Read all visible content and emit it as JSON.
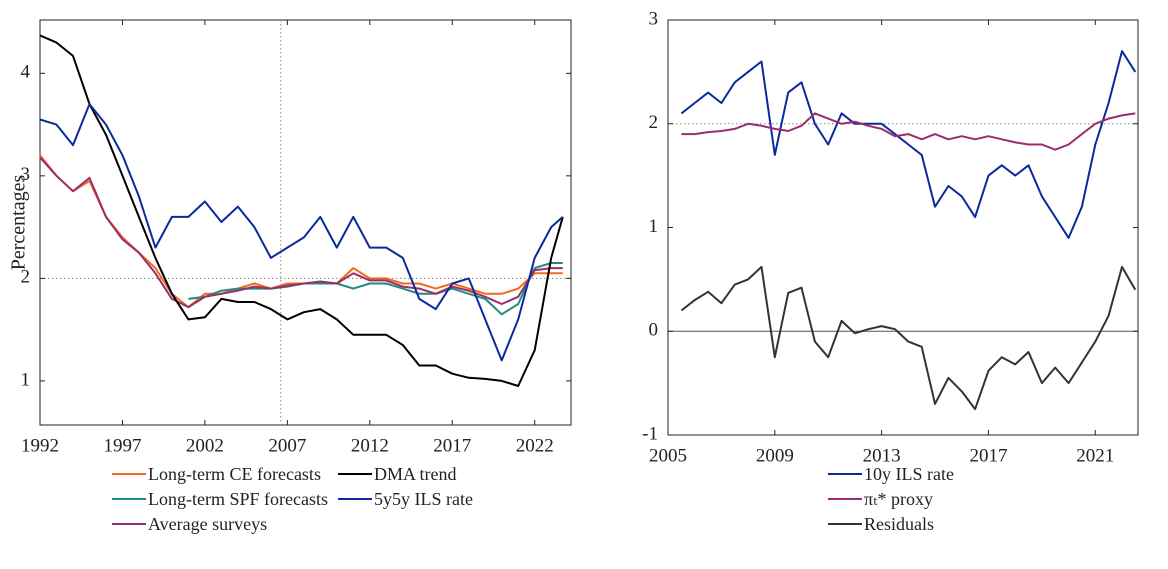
{
  "chart_data": [
    {
      "type": "line",
      "ylabel": "Percentages",
      "x": [
        1992,
        1993,
        1994,
        1995,
        1996,
        1997,
        1998,
        1999,
        2000,
        2001,
        2002,
        2003,
        2004,
        2005,
        2006,
        2007,
        2008,
        2009,
        2010,
        2011,
        2012,
        2013,
        2014,
        2015,
        2016,
        2017,
        2018,
        2019,
        2020,
        2021,
        2022,
        2023,
        2023.7
      ],
      "xlim": [
        1992,
        2024.2
      ],
      "xticks": [
        1992,
        1997,
        2002,
        2007,
        2012,
        2017,
        2022
      ],
      "ylim": [
        0.57,
        4.52
      ],
      "yticks": [
        1,
        2,
        3,
        4
      ],
      "reference_lines": [
        {
          "axis": "y",
          "value": 2,
          "style": "dotted"
        },
        {
          "axis": "x",
          "value": 2006.6,
          "style": "dotted"
        }
      ],
      "series": [
        {
          "name": "Long-term CE forecasts",
          "color": "#f26b1d",
          "values": [
            3.2,
            3.0,
            2.85,
            2.95,
            2.6,
            2.4,
            2.25,
            2.1,
            1.85,
            1.72,
            1.85,
            1.85,
            1.9,
            1.95,
            1.9,
            1.95,
            1.95,
            1.95,
            1.95,
            2.1,
            2.0,
            2.0,
            1.95,
            1.95,
            1.9,
            1.95,
            1.9,
            1.85,
            1.85,
            1.9,
            2.05,
            2.05,
            2.05
          ]
        },
        {
          "name": "Long-term SPF forecasts",
          "color": "#1f8a80",
          "values": [
            null,
            null,
            null,
            null,
            null,
            null,
            null,
            null,
            null,
            1.8,
            1.82,
            1.88,
            1.9,
            1.9,
            1.9,
            1.92,
            1.95,
            1.95,
            1.95,
            1.9,
            1.95,
            1.95,
            1.9,
            1.85,
            1.85,
            1.9,
            1.85,
            1.8,
            1.65,
            1.75,
            2.1,
            2.15,
            2.15
          ]
        },
        {
          "name": "Average surveys",
          "color": "#9b2d6b",
          "values": [
            3.18,
            3.0,
            2.85,
            2.98,
            2.6,
            2.38,
            2.25,
            2.05,
            1.8,
            1.72,
            1.82,
            1.85,
            1.88,
            1.92,
            1.9,
            1.93,
            1.95,
            1.97,
            1.95,
            2.05,
            1.98,
            1.98,
            1.92,
            1.9,
            1.85,
            1.92,
            1.88,
            1.82,
            1.75,
            1.82,
            2.08,
            2.1,
            2.1
          ]
        },
        {
          "name": "DMA trend",
          "color": "#000000",
          "values": [
            4.37,
            4.3,
            4.17,
            3.7,
            3.4,
            3.0,
            2.6,
            2.2,
            1.85,
            1.6,
            1.62,
            1.8,
            1.77,
            1.77,
            1.7,
            1.6,
            1.67,
            1.7,
            1.6,
            1.45,
            1.45,
            1.45,
            1.35,
            1.15,
            1.15,
            1.07,
            1.03,
            1.02,
            1.0,
            0.95,
            1.3,
            2.2,
            2.6
          ]
        },
        {
          "name": "5y5y ILS rate",
          "color": "#0a2a9e",
          "values": [
            3.55,
            3.5,
            3.3,
            3.7,
            3.5,
            3.2,
            2.8,
            2.3,
            2.6,
            2.6,
            2.75,
            2.55,
            2.7,
            2.5,
            2.2,
            2.3,
            2.4,
            2.6,
            2.3,
            2.6,
            2.3,
            2.3,
            2.2,
            1.8,
            1.7,
            1.95,
            2.0,
            1.6,
            1.2,
            1.6,
            2.2,
            2.5,
            2.6
          ]
        }
      ]
    },
    {
      "type": "line",
      "x": [
        2005.5,
        2006,
        2006.5,
        2007,
        2007.5,
        2008,
        2008.5,
        2009,
        2009.5,
        2010,
        2010.5,
        2011,
        2011.5,
        2012,
        2012.5,
        2013,
        2013.5,
        2014,
        2014.5,
        2015,
        2015.5,
        2016,
        2016.5,
        2017,
        2017.5,
        2018,
        2018.5,
        2019,
        2019.5,
        2020,
        2020.5,
        2021,
        2021.5,
        2022,
        2022.5
      ],
      "xlim": [
        2005,
        2022.6
      ],
      "xticks": [
        2005,
        2009,
        2013,
        2017,
        2021
      ],
      "ylim": [
        -1,
        3
      ],
      "yticks": [
        -1,
        0,
        1,
        2,
        3
      ],
      "reference_lines": [
        {
          "axis": "y",
          "value": 2,
          "style": "dotted"
        },
        {
          "axis": "y",
          "value": 0,
          "style": "solid"
        }
      ],
      "series": [
        {
          "name": "10y ILS rate",
          "color": "#0a2a9e",
          "values": [
            2.1,
            2.2,
            2.3,
            2.2,
            2.4,
            2.5,
            2.6,
            1.7,
            2.3,
            2.4,
            2.0,
            1.8,
            2.1,
            2.0,
            2.0,
            2.0,
            1.9,
            1.8,
            1.7,
            1.2,
            1.4,
            1.3,
            1.1,
            1.5,
            1.6,
            1.5,
            1.6,
            1.3,
            1.1,
            0.9,
            1.2,
            1.8,
            2.2,
            2.7,
            2.5
          ]
        },
        {
          "name": "πₜ* proxy",
          "color": "#9b2d6b",
          "values": [
            1.9,
            1.9,
            1.92,
            1.93,
            1.95,
            2.0,
            1.98,
            1.95,
            1.93,
            1.98,
            2.1,
            2.05,
            2.0,
            2.02,
            1.98,
            1.95,
            1.88,
            1.9,
            1.85,
            1.9,
            1.85,
            1.88,
            1.85,
            1.88,
            1.85,
            1.82,
            1.8,
            1.8,
            1.75,
            1.8,
            1.9,
            2.0,
            2.05,
            2.08,
            2.1
          ]
        },
        {
          "name": "Residuals",
          "color": "#333333",
          "values": [
            0.2,
            0.3,
            0.38,
            0.27,
            0.45,
            0.5,
            0.62,
            -0.25,
            0.37,
            0.42,
            -0.1,
            -0.25,
            0.1,
            -0.02,
            0.02,
            0.05,
            0.02,
            -0.1,
            -0.15,
            -0.7,
            -0.45,
            -0.58,
            -0.75,
            -0.38,
            -0.25,
            -0.32,
            -0.2,
            -0.5,
            -0.35,
            -0.5,
            -0.3,
            -0.1,
            0.15,
            0.62,
            0.4
          ]
        }
      ]
    }
  ]
}
